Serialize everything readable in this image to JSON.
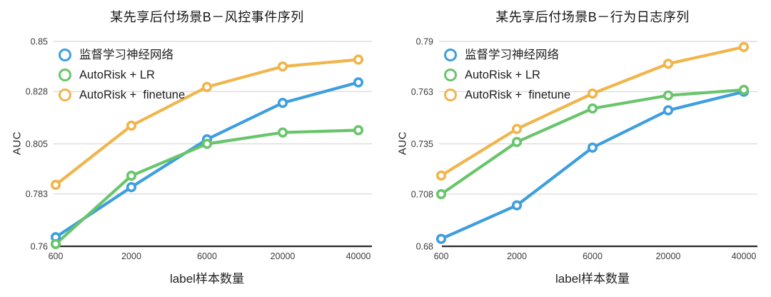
{
  "colors": {
    "blue": "#3E9EDE",
    "green": "#69C56B",
    "orange": "#F0B54B",
    "grid": "#D8D8D8",
    "axis": "#2B2B2B",
    "tick_text": "#3C3C3C"
  },
  "chart_data": [
    {
      "type": "line",
      "title": "某先享后付场景B－风控事件序列",
      "xlabel": "label样本数量",
      "ylabel": "AUC",
      "grid": true,
      "legend_position": "top-left",
      "categories": [
        "600",
        "2000",
        "6000",
        "20000",
        "40000"
      ],
      "ytick_labels": [
        "0.76",
        "0.783",
        "0.805",
        "0.828",
        "0.85"
      ],
      "ylim": [
        0.76,
        0.85
      ],
      "series": [
        {
          "name": "监督学习神经网络",
          "color_key": "blue",
          "values": [
            0.764,
            0.786,
            0.807,
            0.823,
            0.832
          ]
        },
        {
          "name": "AutoRisk + LR",
          "color_key": "green",
          "values": [
            0.761,
            0.791,
            0.805,
            0.81,
            0.811
          ]
        },
        {
          "name": "AutoRisk +  finetune",
          "color_key": "orange",
          "values": [
            0.787,
            0.813,
            0.83,
            0.839,
            0.842
          ]
        }
      ]
    },
    {
      "type": "line",
      "title": "某先享后付场景B－行为日志序列",
      "xlabel": "label样本数量",
      "ylabel": "AUC",
      "grid": true,
      "legend_position": "top-left",
      "categories": [
        "600",
        "2000",
        "6000",
        "20000",
        "40000"
      ],
      "ytick_labels": [
        "0.68",
        "0.708",
        "0.735",
        "0.763",
        "0.79"
      ],
      "ylim": [
        0.68,
        0.79
      ],
      "series": [
        {
          "name": "监督学习神经网络",
          "color_key": "blue",
          "values": [
            0.684,
            0.702,
            0.733,
            0.753,
            0.763
          ]
        },
        {
          "name": "AutoRisk + LR",
          "color_key": "green",
          "values": [
            0.708,
            0.736,
            0.754,
            0.761,
            0.764
          ]
        },
        {
          "name": "AutoRisk +  finetune",
          "color_key": "orange",
          "values": [
            0.718,
            0.743,
            0.762,
            0.778,
            0.787
          ]
        }
      ]
    }
  ]
}
